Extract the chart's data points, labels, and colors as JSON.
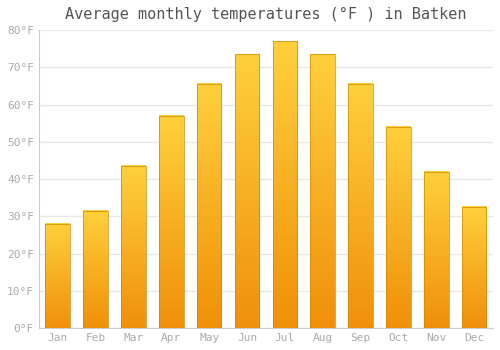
{
  "title": "Average monthly temperatures (°F ) in Batken",
  "months": [
    "Jan",
    "Feb",
    "Mar",
    "Apr",
    "May",
    "Jun",
    "Jul",
    "Aug",
    "Sep",
    "Oct",
    "Nov",
    "Dec"
  ],
  "values": [
    28,
    31.5,
    43.5,
    57,
    65.5,
    73.5,
    77,
    73.5,
    65.5,
    54,
    42,
    32.5
  ],
  "bar_color": "#FFA500",
  "bar_color_light": "#FFD966",
  "background_color": "#ffffff",
  "grid_color": "#e8e8e8",
  "ylim": [
    0,
    80
  ],
  "yticks": [
    0,
    10,
    20,
    30,
    40,
    50,
    60,
    70,
    80
  ],
  "ytick_labels": [
    "0°F",
    "10°F",
    "20°F",
    "30°F",
    "40°F",
    "50°F",
    "60°F",
    "70°F",
    "80°F"
  ],
  "title_fontsize": 11,
  "tick_fontsize": 8,
  "tick_color": "#aaaaaa",
  "title_color": "#555555"
}
